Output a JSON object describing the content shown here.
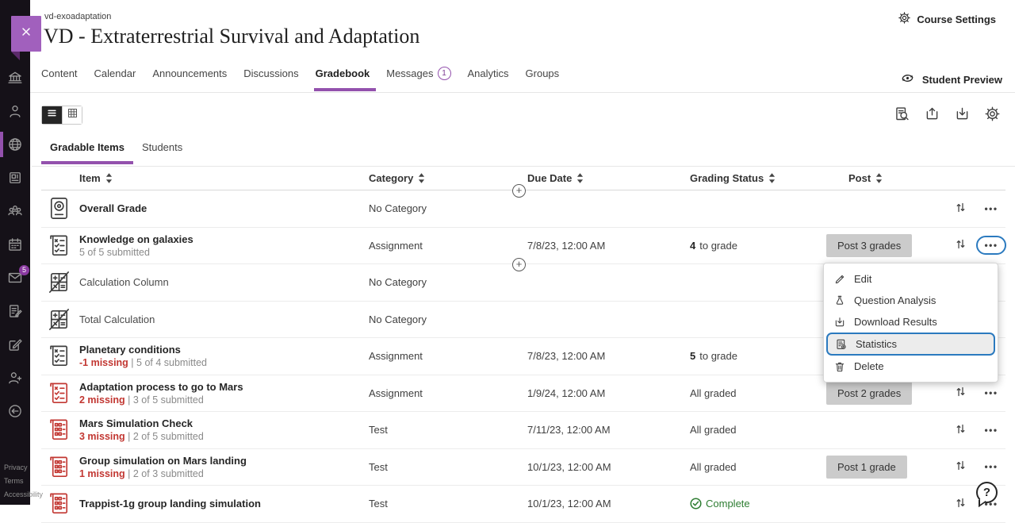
{
  "header": {
    "course_id": "vd-exoadaptation",
    "course_title": "VD - Extraterrestrial Survival and Adaptation",
    "course_settings_label": "Course Settings"
  },
  "sidebar": {
    "close_icon": "close-icon",
    "items": [
      {
        "name": "institution",
        "icon": "bank"
      },
      {
        "name": "profile",
        "icon": "person"
      },
      {
        "name": "courses",
        "icon": "globe",
        "active": true
      },
      {
        "name": "organizations",
        "icon": "news"
      },
      {
        "name": "community",
        "icon": "people"
      },
      {
        "name": "calendar",
        "icon": "calendar"
      },
      {
        "name": "messages",
        "icon": "mail",
        "badge": "5"
      },
      {
        "name": "grades",
        "icon": "doc-pencil"
      },
      {
        "name": "activity",
        "icon": "compose"
      },
      {
        "name": "admin",
        "icon": "person-plus"
      },
      {
        "name": "sign-out",
        "icon": "sign-out"
      }
    ],
    "footer_links": [
      "Privacy",
      "Terms",
      "Accessibility"
    ]
  },
  "nav": {
    "tabs": [
      {
        "label": "Content"
      },
      {
        "label": "Calendar"
      },
      {
        "label": "Announcements"
      },
      {
        "label": "Discussions"
      },
      {
        "label": "Gradebook",
        "active": true
      },
      {
        "label": "Messages",
        "badge": "1"
      },
      {
        "label": "Analytics"
      },
      {
        "label": "Groups"
      }
    ],
    "student_preview_label": "Student Preview"
  },
  "view_tabs": [
    {
      "label": "Gradable Items",
      "active": true
    },
    {
      "label": "Students"
    }
  ],
  "table": {
    "columns": [
      {
        "label": "Item"
      },
      {
        "label": "Category"
      },
      {
        "label": "Due Date"
      },
      {
        "label": "Grading Status"
      },
      {
        "label": "Post"
      }
    ],
    "rows": [
      {
        "icon": "overall-grade",
        "icon_color": "dark",
        "title": "Overall Grade",
        "category": "No Category"
      },
      {
        "icon": "checklist",
        "icon_color": "dark",
        "title": "Knowledge on galaxies",
        "submitted": "5 of 5 submitted",
        "category": "Assignment",
        "due": "7/8/23, 12:00 AM",
        "status_bold": "4",
        "status_text": "to grade",
        "post_label": "Post 3 grades",
        "menu_open": true
      },
      {
        "icon": "calculator",
        "icon_color": "dark",
        "title": "Calculation Column",
        "muted": true,
        "category": "No Category"
      },
      {
        "icon": "calculator",
        "icon_color": "dark",
        "title": "Total Calculation",
        "muted": true,
        "category": "No Category"
      },
      {
        "icon": "checklist",
        "icon_color": "dark",
        "title": "Planetary conditions",
        "missing": "-1 missing",
        "separator": " | ",
        "submitted": "5 of 4 submitted",
        "category": "Assignment",
        "due": "7/8/23, 12:00 AM",
        "status_bold": "5",
        "status_text": "to grade"
      },
      {
        "icon": "checklist",
        "icon_color": "red",
        "title": "Adaptation process to go to Mars",
        "missing": "2 missing",
        "separator": " | ",
        "submitted": "3 of 5 submitted",
        "category": "Assignment",
        "due": "1/9/24, 12:00 AM",
        "status_text": "All graded",
        "post_label": "Post 2 grades"
      },
      {
        "icon": "test",
        "icon_color": "red",
        "title": "Mars Simulation Check",
        "missing": "3 missing",
        "separator": " | ",
        "submitted": "2 of 5 submitted",
        "category": "Test",
        "due": "7/11/23, 12:00 AM",
        "status_text": "All graded"
      },
      {
        "icon": "test",
        "icon_color": "red",
        "title": "Group simulation on Mars landing",
        "missing": "1 missing",
        "separator": " | ",
        "submitted": "2 of 3 submitted",
        "category": "Test",
        "due": "10/1/23, 12:00 AM",
        "status_text": "All graded",
        "post_label": "Post 1 grade"
      },
      {
        "icon": "test",
        "icon_color": "red",
        "title": "Trappist-1g group landing simulation",
        "category": "Test",
        "due": "10/1/23, 12:00 AM",
        "status_text": "Complete",
        "complete": true
      }
    ]
  },
  "context_menu": {
    "items": [
      {
        "label": "Edit",
        "icon": "pencil"
      },
      {
        "label": "Question Analysis",
        "icon": "flask"
      },
      {
        "label": "Download Results",
        "icon": "download"
      },
      {
        "label": "Statistics",
        "icon": "stats",
        "selected": true
      },
      {
        "label": "Delete",
        "icon": "trash"
      }
    ]
  },
  "help": {
    "label": "?"
  },
  "colors": {
    "accent_purple": "#9351ad",
    "focus_blue": "#2b7abf",
    "danger_red": "#c23732",
    "success_green": "#2e7d32",
    "post_button_gray": "#cbcbcb",
    "sidebar_dark": "#151118"
  }
}
